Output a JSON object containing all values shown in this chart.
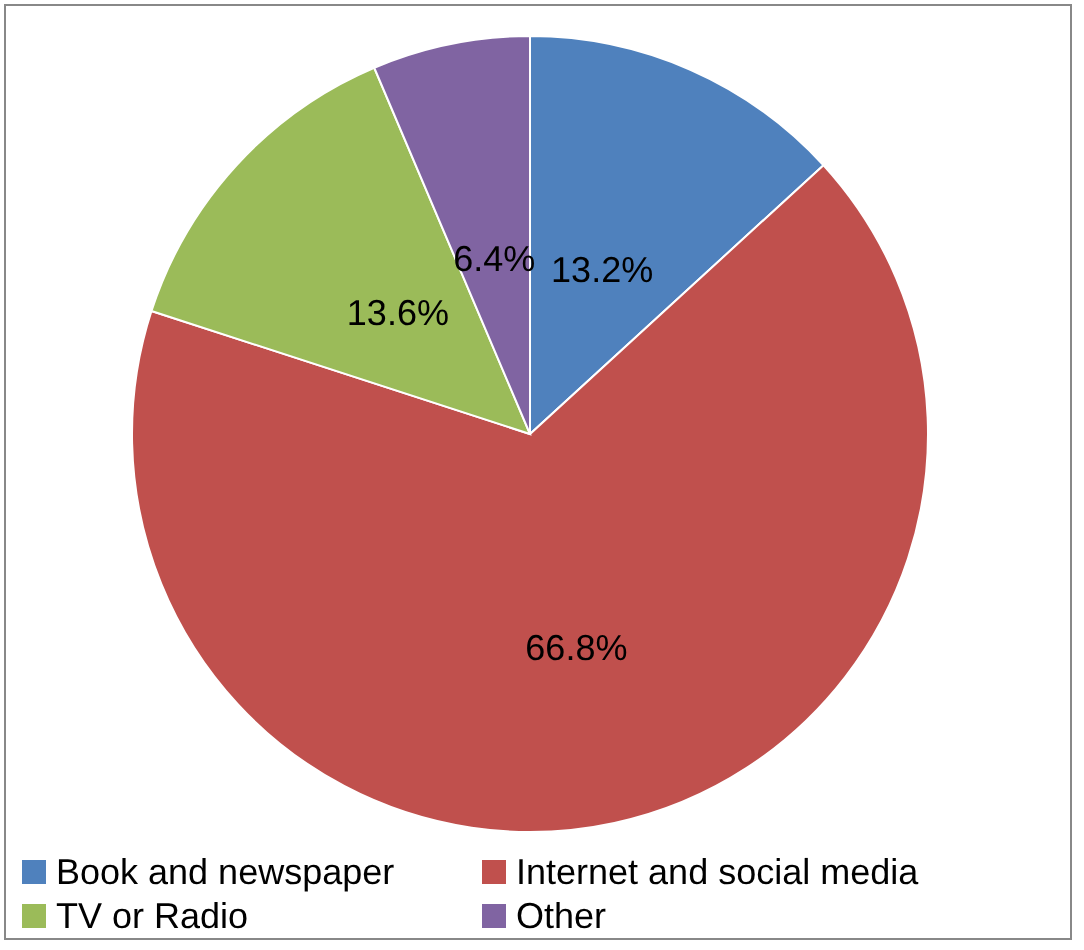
{
  "chart_data": {
    "type": "pie",
    "categories": [
      "Book and newspaper",
      "Internet and social media",
      "TV or Radio",
      "Other"
    ],
    "values": [
      13.2,
      66.8,
      13.6,
      6.4
    ],
    "colors": [
      "#4f81bd",
      "#c0504d",
      "#9bbb59",
      "#8064a2"
    ],
    "value_labels": [
      "13.2%",
      "66.8%",
      "13.6%",
      "6.4%"
    ],
    "legend": "bottom"
  }
}
